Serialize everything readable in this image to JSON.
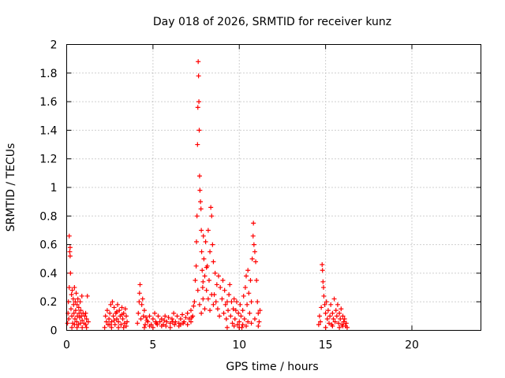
{
  "chart_data": {
    "type": "scatter",
    "title": "Day 018 of 2026, SRMTID for receiver kunz",
    "xlabel": "GPS time / hours",
    "ylabel": "SRMTID / TECUs",
    "xlim": [
      0,
      24
    ],
    "ylim": [
      0,
      2
    ],
    "xticks": [
      0,
      5,
      10,
      15,
      20
    ],
    "xtick_labels": [
      "0",
      "5",
      "10",
      "15",
      "20"
    ],
    "yticks": [
      0,
      0.2,
      0.4,
      0.6,
      0.8,
      1,
      1.2,
      1.4,
      1.6,
      1.8,
      2
    ],
    "ytick_labels": [
      "0",
      "0.2",
      "0.4",
      "0.6",
      "0.8",
      "1",
      "1.2",
      "1.4",
      "1.6",
      "1.8",
      "2"
    ],
    "grid": true,
    "marker": "+",
    "color": "#ff0000",
    "series": [
      {
        "name": "SRMTID",
        "points": [
          [
            0.05,
            0.05
          ],
          [
            0.08,
            0.12
          ],
          [
            0.1,
            0.2
          ],
          [
            0.12,
            0.08
          ],
          [
            0.15,
            0.3
          ],
          [
            0.15,
            0.66
          ],
          [
            0.18,
            0.55
          ],
          [
            0.2,
            0.52
          ],
          [
            0.2,
            0.58
          ],
          [
            0.22,
            0.4
          ],
          [
            0.25,
            0.15
          ],
          [
            0.28,
            0.25
          ],
          [
            0.3,
            0.1
          ],
          [
            0.32,
            0.28
          ],
          [
            0.35,
            0.05
          ],
          [
            0.38,
            0.22
          ],
          [
            0.4,
            0.18
          ],
          [
            0.42,
            0.12
          ],
          [
            0.45,
            0.3
          ],
          [
            0.48,
            0.08
          ],
          [
            0.5,
            0.2
          ],
          [
            0.52,
            0.14
          ],
          [
            0.55,
            0.26
          ],
          [
            0.58,
            0.06
          ],
          [
            0.6,
            0.18
          ],
          [
            0.62,
            0.1
          ],
          [
            0.65,
            0.22
          ],
          [
            0.68,
            0.04
          ],
          [
            0.7,
            0.16
          ],
          [
            0.72,
            0.12
          ],
          [
            0.75,
            0.09
          ],
          [
            0.78,
            0.2
          ],
          [
            0.8,
            0.05
          ],
          [
            0.82,
            0.14
          ],
          [
            0.85,
            0.1
          ],
          [
            0.88,
            0.24
          ],
          [
            0.9,
            0.07
          ],
          [
            0.95,
            0.12
          ],
          [
            1.0,
            0.05
          ],
          [
            1.05,
            0.1
          ],
          [
            1.1,
            0.04
          ],
          [
            1.15,
            0.08
          ],
          [
            1.2,
            0.24
          ],
          [
            1.25,
            0.06
          ],
          [
            1.1,
            0.12
          ],
          [
            0.3,
            0.02
          ],
          [
            0.6,
            0.02
          ],
          [
            0.9,
            0.02
          ],
          [
            1.15,
            0.02
          ],
          [
            0.45,
            0.04
          ],
          [
            2.2,
            0.02
          ],
          [
            2.25,
            0.1
          ],
          [
            2.3,
            0.06
          ],
          [
            2.35,
            0.14
          ],
          [
            2.4,
            0.04
          ],
          [
            2.45,
            0.08
          ],
          [
            2.5,
            0.12
          ],
          [
            2.55,
            0.18
          ],
          [
            2.6,
            0.06
          ],
          [
            2.65,
            0.2
          ],
          [
            2.7,
            0.1
          ],
          [
            2.75,
            0.16
          ],
          [
            2.8,
            0.04
          ],
          [
            2.85,
            0.12
          ],
          [
            2.9,
            0.08
          ],
          [
            2.95,
            0.18
          ],
          [
            3.0,
            0.06
          ],
          [
            3.05,
            0.14
          ],
          [
            3.1,
            0.1
          ],
          [
            3.15,
            0.04
          ],
          [
            3.2,
            0.16
          ],
          [
            3.25,
            0.08
          ],
          [
            3.3,
            0.12
          ],
          [
            3.35,
            0.05
          ],
          [
            3.4,
            0.15
          ],
          [
            3.45,
            0.1
          ],
          [
            3.5,
            0.06
          ],
          [
            2.6,
            0.02
          ],
          [
            3.0,
            0.02
          ],
          [
            3.3,
            0.02
          ],
          [
            2.5,
            0.04
          ],
          [
            2.9,
            0.13
          ],
          [
            3.2,
            0.11
          ],
          [
            2.75,
            0.07
          ],
          [
            3.45,
            0.03
          ],
          [
            4.1,
            0.05
          ],
          [
            4.15,
            0.12
          ],
          [
            4.2,
            0.2
          ],
          [
            4.22,
            0.26
          ],
          [
            4.25,
            0.32
          ],
          [
            4.3,
            0.08
          ],
          [
            4.35,
            0.18
          ],
          [
            4.4,
            0.22
          ],
          [
            4.45,
            0.1
          ],
          [
            4.5,
            0.14
          ],
          [
            4.55,
            0.04
          ],
          [
            4.6,
            0.09
          ],
          [
            4.7,
            0.06
          ],
          [
            4.8,
            0.1
          ],
          [
            4.9,
            0.04
          ],
          [
            5.0,
            0.08
          ],
          [
            5.1,
            0.12
          ],
          [
            5.2,
            0.05
          ],
          [
            5.3,
            0.1
          ],
          [
            5.4,
            0.06
          ],
          [
            5.5,
            0.08
          ],
          [
            5.6,
            0.04
          ],
          [
            5.7,
            0.1
          ],
          [
            5.8,
            0.06
          ],
          [
            5.9,
            0.09
          ],
          [
            6.0,
            0.05
          ],
          [
            6.1,
            0.08
          ],
          [
            6.2,
            0.12
          ],
          [
            6.3,
            0.06
          ],
          [
            6.4,
            0.1
          ],
          [
            6.5,
            0.05
          ],
          [
            6.6,
            0.08
          ],
          [
            6.7,
            0.11
          ],
          [
            6.8,
            0.06
          ],
          [
            6.9,
            0.09
          ],
          [
            7.0,
            0.12
          ],
          [
            7.1,
            0.08
          ],
          [
            7.2,
            0.14
          ],
          [
            7.3,
            0.1
          ],
          [
            7.35,
            0.17
          ],
          [
            4.5,
            0.02
          ],
          [
            5.0,
            0.02
          ],
          [
            5.5,
            0.03
          ],
          [
            6.0,
            0.02
          ],
          [
            6.5,
            0.03
          ],
          [
            7.0,
            0.04
          ],
          [
            4.8,
            0.03
          ],
          [
            5.25,
            0.04
          ],
          [
            5.75,
            0.03
          ],
          [
            6.25,
            0.04
          ],
          [
            6.75,
            0.05
          ],
          [
            7.2,
            0.06
          ],
          [
            4.65,
            0.07
          ],
          [
            5.15,
            0.06
          ],
          [
            5.65,
            0.07
          ],
          [
            6.15,
            0.06
          ],
          [
            6.6,
            0.04
          ],
          [
            7.25,
            0.09
          ],
          [
            7.4,
            0.2
          ],
          [
            7.45,
            0.35
          ],
          [
            7.5,
            0.45
          ],
          [
            7.52,
            0.62
          ],
          [
            7.55,
            0.8
          ],
          [
            7.58,
            1.3
          ],
          [
            7.6,
            1.56
          ],
          [
            7.62,
            1.88
          ],
          [
            7.64,
            1.78
          ],
          [
            7.66,
            1.6
          ],
          [
            7.68,
            1.4
          ],
          [
            7.7,
            1.08
          ],
          [
            7.72,
            0.98
          ],
          [
            7.75,
            0.9
          ],
          [
            7.78,
            0.85
          ],
          [
            7.8,
            0.7
          ],
          [
            7.82,
            0.55
          ],
          [
            7.85,
            0.42
          ],
          [
            7.88,
            0.3
          ],
          [
            7.9,
            0.22
          ],
          [
            7.92,
            0.66
          ],
          [
            7.95,
            0.5
          ],
          [
            8.0,
            0.38
          ],
          [
            8.05,
            0.62
          ],
          [
            8.1,
            0.28
          ],
          [
            8.15,
            0.45
          ],
          [
            8.2,
            0.7
          ],
          [
            8.25,
            0.35
          ],
          [
            8.3,
            0.55
          ],
          [
            8.35,
            0.86
          ],
          [
            8.4,
            0.8
          ],
          [
            8.45,
            0.6
          ],
          [
            8.5,
            0.48
          ],
          [
            8.55,
            0.25
          ],
          [
            8.6,
            0.4
          ],
          [
            8.65,
            0.2
          ],
          [
            8.7,
            0.32
          ],
          [
            8.75,
            0.15
          ],
          [
            8.8,
            0.38
          ],
          [
            8.85,
            0.1
          ],
          [
            7.6,
            0.28
          ],
          [
            7.7,
            0.18
          ],
          [
            7.8,
            0.12
          ],
          [
            7.9,
            0.34
          ],
          [
            8.0,
            0.15
          ],
          [
            8.1,
            0.44
          ],
          [
            8.2,
            0.22
          ],
          [
            8.3,
            0.14
          ],
          [
            8.4,
            0.25
          ],
          [
            8.5,
            0.18
          ],
          [
            8.9,
            0.3
          ],
          [
            9.0,
            0.22
          ],
          [
            9.05,
            0.35
          ],
          [
            9.1,
            0.12
          ],
          [
            9.15,
            0.28
          ],
          [
            9.2,
            0.18
          ],
          [
            9.25,
            0.08
          ],
          [
            9.3,
            0.2
          ],
          [
            9.35,
            0.14
          ],
          [
            9.4,
            0.25
          ],
          [
            9.45,
            0.32
          ],
          [
            9.5,
            0.1
          ],
          [
            9.55,
            0.2
          ],
          [
            9.6,
            0.05
          ],
          [
            9.65,
            0.15
          ],
          [
            9.7,
            0.22
          ],
          [
            9.75,
            0.08
          ],
          [
            9.8,
            0.14
          ],
          [
            9.85,
            0.2
          ],
          [
            9.9,
            0.04
          ],
          [
            9.95,
            0.12
          ],
          [
            10.0,
            0.06
          ],
          [
            10.05,
            0.18
          ],
          [
            10.1,
            0.1
          ],
          [
            10.15,
            0.02
          ],
          [
            10.2,
            0.14
          ],
          [
            10.25,
            0.24
          ],
          [
            10.3,
            0.08
          ],
          [
            10.35,
            0.3
          ],
          [
            10.4,
            0.38
          ],
          [
            10.45,
            0.18
          ],
          [
            10.5,
            0.42
          ],
          [
            10.55,
            0.26
          ],
          [
            10.6,
            0.12
          ],
          [
            10.65,
            0.35
          ],
          [
            10.7,
            0.2
          ],
          [
            10.75,
            0.5
          ],
          [
            10.8,
            0.66
          ],
          [
            10.82,
            0.75
          ],
          [
            10.85,
            0.6
          ],
          [
            10.9,
            0.55
          ],
          [
            10.95,
            0.48
          ],
          [
            11.0,
            0.35
          ],
          [
            11.05,
            0.2
          ],
          [
            11.1,
            0.12
          ],
          [
            11.15,
            0.06
          ],
          [
            11.2,
            0.14
          ],
          [
            10.2,
            0.04
          ],
          [
            10.5,
            0.06
          ],
          [
            10.9,
            0.08
          ],
          [
            9.3,
            0.02
          ],
          [
            9.7,
            0.03
          ],
          [
            10.0,
            0.02
          ],
          [
            10.4,
            0.03
          ],
          [
            10.7,
            0.05
          ],
          [
            11.1,
            0.03
          ],
          [
            14.6,
            0.04
          ],
          [
            14.65,
            0.1
          ],
          [
            14.7,
            0.06
          ],
          [
            14.75,
            0.16
          ],
          [
            14.8,
            0.46
          ],
          [
            14.82,
            0.42
          ],
          [
            14.85,
            0.34
          ],
          [
            14.88,
            0.3
          ],
          [
            14.9,
            0.24
          ],
          [
            14.95,
            0.18
          ],
          [
            15.0,
            0.12
          ],
          [
            15.05,
            0.2
          ],
          [
            15.1,
            0.08
          ],
          [
            15.15,
            0.14
          ],
          [
            15.2,
            0.05
          ],
          [
            15.25,
            0.1
          ],
          [
            15.3,
            0.18
          ],
          [
            15.35,
            0.04
          ],
          [
            15.4,
            0.12
          ],
          [
            15.45,
            0.08
          ],
          [
            15.5,
            0.22
          ],
          [
            15.55,
            0.06
          ],
          [
            15.6,
            0.14
          ],
          [
            15.65,
            0.1
          ],
          [
            15.7,
            0.18
          ],
          [
            15.75,
            0.05
          ],
          [
            15.8,
            0.12
          ],
          [
            15.85,
            0.08
          ],
          [
            15.9,
            0.15
          ],
          [
            15.95,
            0.04
          ],
          [
            16.0,
            0.1
          ],
          [
            16.05,
            0.06
          ],
          [
            16.1,
            0.08
          ],
          [
            16.15,
            0.03
          ],
          [
            16.2,
            0.05
          ],
          [
            16.25,
            0.02
          ],
          [
            15.0,
            0.02
          ],
          [
            15.4,
            0.03
          ],
          [
            15.8,
            0.02
          ],
          [
            16.0,
            0.03
          ]
        ]
      }
    ]
  }
}
